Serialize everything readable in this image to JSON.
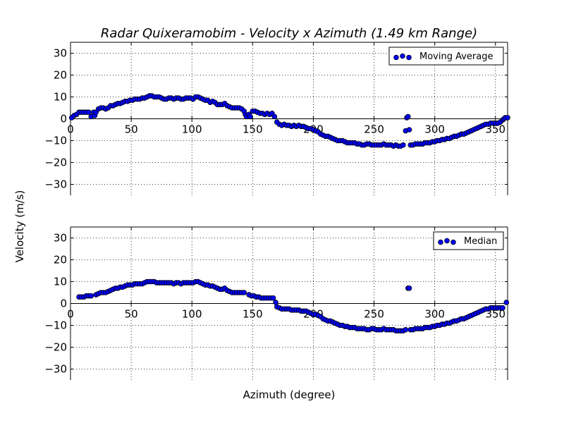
{
  "figure": {
    "title": "Radar Quixeramobim - Velocity x Azimuth (1.49 km Range)",
    "ylabel": "Velocity (m/s)",
    "xlabel": "Azimuth (degree)"
  },
  "chart_data": [
    {
      "type": "scatter",
      "series": [
        {
          "name": "Moving Average"
        }
      ],
      "legend_label": "Moving Average",
      "legend_position": "top-right",
      "xlim": [
        0,
        360
      ],
      "ylim": [
        -35,
        35
      ],
      "xticks": [
        0,
        50,
        100,
        150,
        200,
        250,
        300,
        350
      ],
      "xtick_labels": [
        "0",
        "50",
        "100",
        "150",
        "200",
        "250",
        "300",
        "350"
      ],
      "yticks": [
        30,
        20,
        10,
        0,
        -10,
        -20,
        -30
      ],
      "ytick_labels": [
        "30",
        "20",
        "10",
        "0",
        "−10",
        "−20",
        "−30"
      ],
      "grid": true,
      "marker_color": "#0000ff",
      "points": [
        [
          1,
          0.5
        ],
        [
          3,
          1.5
        ],
        [
          5,
          2
        ],
        [
          7,
          3
        ],
        [
          9,
          3
        ],
        [
          11,
          3
        ],
        [
          13,
          3
        ],
        [
          15,
          3
        ],
        [
          17,
          1
        ],
        [
          19,
          3
        ],
        [
          20,
          1.5
        ],
        [
          21,
          3
        ],
        [
          23,
          4.5
        ],
        [
          25,
          5
        ],
        [
          27,
          5
        ],
        [
          29,
          4.5
        ],
        [
          31,
          5
        ],
        [
          33,
          6
        ],
        [
          35,
          6
        ],
        [
          37,
          6.5
        ],
        [
          39,
          7
        ],
        [
          41,
          7
        ],
        [
          43,
          7.5
        ],
        [
          45,
          8
        ],
        [
          47,
          8
        ],
        [
          49,
          8.5
        ],
        [
          51,
          8.5
        ],
        [
          53,
          9
        ],
        [
          55,
          9
        ],
        [
          57,
          9
        ],
        [
          59,
          9.5
        ],
        [
          61,
          9.5
        ],
        [
          63,
          10
        ],
        [
          65,
          10.5
        ],
        [
          67,
          10.5
        ],
        [
          69,
          10
        ],
        [
          71,
          10
        ],
        [
          73,
          10
        ],
        [
          75,
          9.5
        ],
        [
          77,
          9
        ],
        [
          79,
          9
        ],
        [
          81,
          9.5
        ],
        [
          83,
          9.5
        ],
        [
          85,
          9
        ],
        [
          87,
          9.5
        ],
        [
          89,
          9.5
        ],
        [
          91,
          9
        ],
        [
          93,
          9
        ],
        [
          95,
          9.5
        ],
        [
          97,
          9.5
        ],
        [
          99,
          9.5
        ],
        [
          101,
          9
        ],
        [
          103,
          10
        ],
        [
          105,
          10
        ],
        [
          107,
          9.5
        ],
        [
          109,
          9
        ],
        [
          111,
          8.5
        ],
        [
          113,
          8.5
        ],
        [
          115,
          7.5
        ],
        [
          117,
          8
        ],
        [
          119,
          7.5
        ],
        [
          121,
          6.5
        ],
        [
          123,
          6.5
        ],
        [
          125,
          6.5
        ],
        [
          127,
          7
        ],
        [
          129,
          6
        ],
        [
          131,
          5.5
        ],
        [
          133,
          5
        ],
        [
          135,
          5
        ],
        [
          137,
          5
        ],
        [
          139,
          5
        ],
        [
          141,
          4.5
        ],
        [
          143,
          3.5
        ],
        [
          144,
          2
        ],
        [
          145,
          1
        ],
        [
          147,
          2
        ],
        [
          148,
          1
        ],
        [
          150,
          3.5
        ],
        [
          152,
          3.5
        ],
        [
          154,
          3
        ],
        [
          156,
          2.5
        ],
        [
          158,
          2.5
        ],
        [
          160,
          2
        ],
        [
          162,
          2.5
        ],
        [
          164,
          2
        ],
        [
          166,
          2.5
        ],
        [
          168,
          1
        ],
        [
          170,
          -1.5
        ],
        [
          172,
          -2.5
        ],
        [
          174,
          -3
        ],
        [
          176,
          -2.5
        ],
        [
          178,
          -3
        ],
        [
          180,
          -3
        ],
        [
          182,
          -3.5
        ],
        [
          184,
          -3
        ],
        [
          186,
          -3.5
        ],
        [
          188,
          -3
        ],
        [
          190,
          -3.5
        ],
        [
          192,
          -3.5
        ],
        [
          194,
          -4
        ],
        [
          196,
          -4.5
        ],
        [
          198,
          -4.5
        ],
        [
          200,
          -5
        ],
        [
          202,
          -5.5
        ],
        [
          204,
          -6
        ],
        [
          206,
          -7
        ],
        [
          208,
          -7.5
        ],
        [
          210,
          -8
        ],
        [
          212,
          -8
        ],
        [
          214,
          -8.5
        ],
        [
          216,
          -9
        ],
        [
          218,
          -9.5
        ],
        [
          220,
          -10
        ],
        [
          222,
          -10
        ],
        [
          224,
          -10
        ],
        [
          226,
          -10.5
        ],
        [
          228,
          -11
        ],
        [
          230,
          -11
        ],
        [
          232,
          -11
        ],
        [
          234,
          -11
        ],
        [
          236,
          -11.5
        ],
        [
          238,
          -11.5
        ],
        [
          240,
          -12
        ],
        [
          242,
          -12
        ],
        [
          244,
          -11.5
        ],
        [
          246,
          -11.5
        ],
        [
          248,
          -12
        ],
        [
          250,
          -12
        ],
        [
          252,
          -12
        ],
        [
          254,
          -12
        ],
        [
          256,
          -12
        ],
        [
          258,
          -11.5
        ],
        [
          260,
          -12
        ],
        [
          262,
          -12
        ],
        [
          264,
          -12
        ],
        [
          266,
          -12.5
        ],
        [
          268,
          -12
        ],
        [
          270,
          -12.5
        ],
        [
          272,
          -12.5
        ],
        [
          274,
          -12
        ],
        [
          276,
          -5.5
        ],
        [
          277,
          0.5
        ],
        [
          278,
          1
        ],
        [
          279,
          -5
        ],
        [
          280,
          -12
        ],
        [
          282,
          -12
        ],
        [
          284,
          -11.5
        ],
        [
          286,
          -11.5
        ],
        [
          288,
          -11.5
        ],
        [
          290,
          -11.5
        ],
        [
          292,
          -11
        ],
        [
          294,
          -11
        ],
        [
          296,
          -11
        ],
        [
          298,
          -10.5
        ],
        [
          300,
          -10.5
        ],
        [
          302,
          -10
        ],
        [
          304,
          -10
        ],
        [
          306,
          -9.5
        ],
        [
          308,
          -9.5
        ],
        [
          310,
          -9
        ],
        [
          312,
          -9
        ],
        [
          314,
          -8.5
        ],
        [
          316,
          -8
        ],
        [
          318,
          -8
        ],
        [
          320,
          -7.5
        ],
        [
          322,
          -7
        ],
        [
          324,
          -7
        ],
        [
          326,
          -6.5
        ],
        [
          328,
          -6
        ],
        [
          330,
          -5.5
        ],
        [
          332,
          -5
        ],
        [
          334,
          -4.5
        ],
        [
          336,
          -4
        ],
        [
          338,
          -3.5
        ],
        [
          340,
          -3
        ],
        [
          342,
          -2.5
        ],
        [
          344,
          -2.5
        ],
        [
          346,
          -2
        ],
        [
          348,
          -2
        ],
        [
          350,
          -2
        ],
        [
          352,
          -2
        ],
        [
          354,
          -1.5
        ],
        [
          356,
          -0.5
        ],
        [
          357,
          0
        ],
        [
          358,
          0.5
        ],
        [
          360,
          0.5
        ]
      ]
    },
    {
      "type": "scatter",
      "series": [
        {
          "name": "Median"
        }
      ],
      "legend_label": "Median",
      "legend_position": "top-right",
      "xlim": [
        0,
        360
      ],
      "ylim": [
        -35,
        35
      ],
      "xticks": [
        0,
        50,
        100,
        150,
        200,
        250,
        300,
        350
      ],
      "xtick_labels": [
        "0",
        "50",
        "100",
        "150",
        "200",
        "250",
        "300",
        "350"
      ],
      "yticks": [
        30,
        20,
        10,
        0,
        -10,
        -20,
        -30
      ],
      "ytick_labels": [
        "30",
        "20",
        "10",
        "0",
        "−10",
        "−20",
        "−30"
      ],
      "grid": true,
      "marker_color": "#0000ff",
      "points": [
        [
          7,
          3
        ],
        [
          9,
          3
        ],
        [
          11,
          3
        ],
        [
          13,
          3.5
        ],
        [
          15,
          3.5
        ],
        [
          17,
          3.5
        ],
        [
          21,
          4
        ],
        [
          23,
          4.5
        ],
        [
          25,
          5
        ],
        [
          27,
          5
        ],
        [
          29,
          5
        ],
        [
          31,
          5.5
        ],
        [
          33,
          6
        ],
        [
          35,
          6.5
        ],
        [
          37,
          7
        ],
        [
          39,
          7
        ],
        [
          41,
          7.5
        ],
        [
          43,
          7.5
        ],
        [
          45,
          8
        ],
        [
          47,
          8.5
        ],
        [
          49,
          8.5
        ],
        [
          51,
          8.5
        ],
        [
          53,
          9
        ],
        [
          55,
          9
        ],
        [
          57,
          9
        ],
        [
          59,
          9
        ],
        [
          61,
          9.5
        ],
        [
          63,
          10
        ],
        [
          65,
          10
        ],
        [
          67,
          10
        ],
        [
          69,
          10
        ],
        [
          71,
          9.5
        ],
        [
          73,
          9.5
        ],
        [
          75,
          9.5
        ],
        [
          77,
          9.5
        ],
        [
          79,
          9.5
        ],
        [
          81,
          9.5
        ],
        [
          83,
          9.5
        ],
        [
          85,
          9
        ],
        [
          87,
          9.5
        ],
        [
          89,
          9.5
        ],
        [
          91,
          9
        ],
        [
          93,
          9.5
        ],
        [
          95,
          9.5
        ],
        [
          97,
          9.5
        ],
        [
          99,
          9.5
        ],
        [
          101,
          9.5
        ],
        [
          103,
          10
        ],
        [
          105,
          10
        ],
        [
          107,
          9.5
        ],
        [
          109,
          9
        ],
        [
          111,
          8.5
        ],
        [
          113,
          8.5
        ],
        [
          115,
          8
        ],
        [
          117,
          8
        ],
        [
          119,
          7.5
        ],
        [
          121,
          7
        ],
        [
          123,
          6.5
        ],
        [
          125,
          6.5
        ],
        [
          127,
          7
        ],
        [
          129,
          6
        ],
        [
          131,
          5.5
        ],
        [
          133,
          5
        ],
        [
          135,
          5
        ],
        [
          137,
          5
        ],
        [
          139,
          5
        ],
        [
          141,
          5
        ],
        [
          143,
          5
        ],
        [
          147,
          4
        ],
        [
          149,
          3.5
        ],
        [
          151,
          3.5
        ],
        [
          153,
          3
        ],
        [
          155,
          3
        ],
        [
          157,
          2.5
        ],
        [
          159,
          2.5
        ],
        [
          161,
          2.5
        ],
        [
          163,
          2.5
        ],
        [
          165,
          2.5
        ],
        [
          167,
          2.5
        ],
        [
          169,
          0.5
        ],
        [
          170,
          -1.5
        ],
        [
          172,
          -2
        ],
        [
          174,
          -2.5
        ],
        [
          176,
          -2.5
        ],
        [
          178,
          -2.5
        ],
        [
          180,
          -2.5
        ],
        [
          182,
          -3
        ],
        [
          184,
          -3
        ],
        [
          186,
          -3
        ],
        [
          188,
          -3
        ],
        [
          190,
          -3.5
        ],
        [
          192,
          -3.5
        ],
        [
          194,
          -3.5
        ],
        [
          196,
          -4
        ],
        [
          198,
          -4.5
        ],
        [
          200,
          -5
        ],
        [
          202,
          -5
        ],
        [
          204,
          -5.5
        ],
        [
          206,
          -6
        ],
        [
          208,
          -7
        ],
        [
          210,
          -7.5
        ],
        [
          212,
          -8
        ],
        [
          214,
          -8
        ],
        [
          216,
          -8.5
        ],
        [
          218,
          -9
        ],
        [
          220,
          -9.5
        ],
        [
          222,
          -10
        ],
        [
          224,
          -10
        ],
        [
          226,
          -10.5
        ],
        [
          228,
          -10.5
        ],
        [
          230,
          -11
        ],
        [
          232,
          -11
        ],
        [
          234,
          -11
        ],
        [
          236,
          -11.5
        ],
        [
          238,
          -11.5
        ],
        [
          240,
          -11.5
        ],
        [
          242,
          -11.5
        ],
        [
          244,
          -12
        ],
        [
          246,
          -12
        ],
        [
          248,
          -11.5
        ],
        [
          250,
          -11.5
        ],
        [
          252,
          -12
        ],
        [
          254,
          -12
        ],
        [
          256,
          -12
        ],
        [
          258,
          -11.5
        ],
        [
          260,
          -12
        ],
        [
          262,
          -12
        ],
        [
          264,
          -12
        ],
        [
          266,
          -12
        ],
        [
          268,
          -12.5
        ],
        [
          270,
          -12.5
        ],
        [
          272,
          -12.5
        ],
        [
          274,
          -12.5
        ],
        [
          276,
          -12
        ],
        [
          278,
          7
        ],
        [
          279,
          7
        ],
        [
          280,
          -12
        ],
        [
          282,
          -12
        ],
        [
          284,
          -11.5
        ],
        [
          286,
          -11.5
        ],
        [
          288,
          -11.5
        ],
        [
          290,
          -11.5
        ],
        [
          292,
          -11
        ],
        [
          294,
          -11
        ],
        [
          296,
          -11
        ],
        [
          298,
          -10.5
        ],
        [
          300,
          -10.5
        ],
        [
          302,
          -10
        ],
        [
          304,
          -10
        ],
        [
          306,
          -9.5
        ],
        [
          308,
          -9.5
        ],
        [
          310,
          -9
        ],
        [
          312,
          -9
        ],
        [
          314,
          -8.5
        ],
        [
          316,
          -8
        ],
        [
          318,
          -8
        ],
        [
          320,
          -7.5
        ],
        [
          322,
          -7
        ],
        [
          324,
          -7
        ],
        [
          326,
          -6.5
        ],
        [
          328,
          -6
        ],
        [
          330,
          -5.5
        ],
        [
          332,
          -5
        ],
        [
          334,
          -4.5
        ],
        [
          336,
          -4
        ],
        [
          338,
          -3.5
        ],
        [
          340,
          -3
        ],
        [
          342,
          -2.5
        ],
        [
          344,
          -2.5
        ],
        [
          346,
          -2
        ],
        [
          348,
          -2
        ],
        [
          350,
          -2
        ],
        [
          352,
          -2
        ],
        [
          354,
          -2
        ],
        [
          356,
          -2
        ],
        [
          359,
          0.5
        ]
      ]
    }
  ]
}
